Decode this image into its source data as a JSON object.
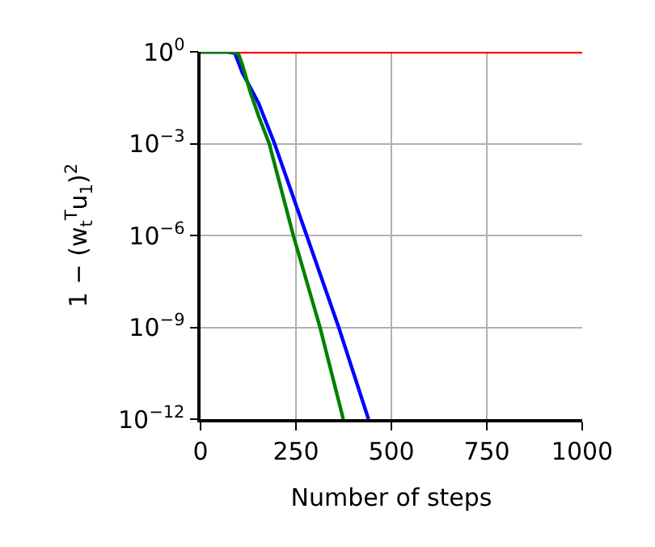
{
  "chart_data": {
    "type": "line",
    "xlabel": "Number of steps",
    "ylabel": "1 − (w$_{t}$$^{T}$u$_{1}$)$^{2}$",
    "log": "y",
    "grid": true,
    "marker": "none",
    "line_style": "solid",
    "xlim": [
      0,
      1000
    ],
    "xticks": [
      0,
      250,
      500,
      750,
      1000
    ],
    "ylim": [
      1e-12,
      1
    ],
    "yticks": [
      {
        "value": 1e-12,
        "label": "10$^{−12}$"
      },
      {
        "value": 1e-09,
        "label": "10$^{−9}$"
      },
      {
        "value": 1e-06,
        "label": "10$^{−6}$"
      },
      {
        "value": 0.001,
        "label": "10$^{−3}$"
      },
      {
        "value": 1,
        "label": "10$^{0}$"
      }
    ],
    "series": [
      {
        "color": "#ff0000",
        "x": [
          0,
          1000
        ],
        "values": [
          1,
          1
        ]
      },
      {
        "color": "#0000ff",
        "x": [
          0,
          40,
          70,
          90,
          110,
          130,
          152,
          175,
          194,
          278,
          362,
          440
        ],
        "values": [
          1,
          1,
          0.99,
          0.9,
          0.2,
          0.07,
          0.021,
          0.004,
          0.001,
          1e-06,
          1e-09,
          1e-12
        ]
      },
      {
        "color": "#008000",
        "x": [
          0,
          40,
          70,
          90,
          100,
          110,
          130,
          152,
          180,
          243,
          313,
          374
        ],
        "values": [
          1,
          1,
          0.99,
          0.95,
          0.8,
          0.36,
          0.05,
          0.008,
          0.001,
          1e-06,
          1e-09,
          1e-12
        ]
      }
    ]
  }
}
